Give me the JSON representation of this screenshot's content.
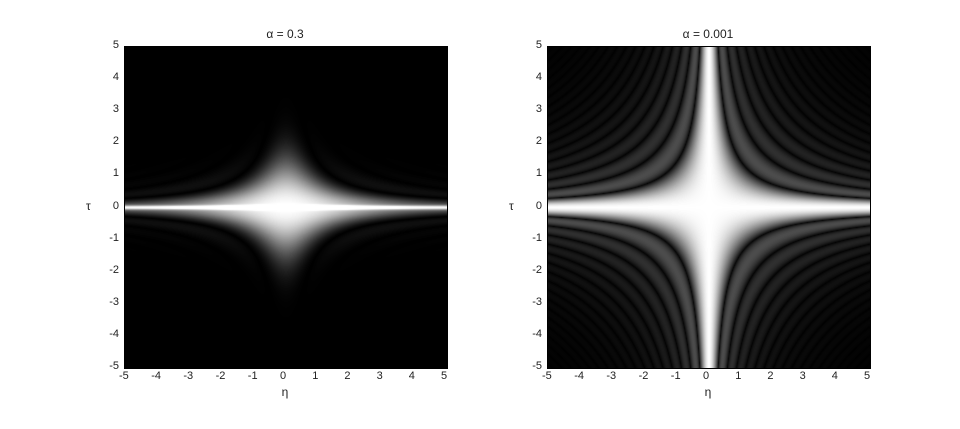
{
  "chart_data": [
    {
      "type": "heatmap",
      "title": "α = 0.3",
      "xlabel": "η",
      "ylabel": "τ",
      "xlim": [
        -5,
        5
      ],
      "ylim": [
        -5,
        5
      ],
      "xticks": [
        "-5",
        "-4",
        "-3",
        "-2",
        "-1",
        "0",
        "1",
        "2",
        "3",
        "4",
        "5"
      ],
      "yticks": [
        "5",
        "4",
        "3",
        "2",
        "1",
        "0",
        "-1",
        "-2",
        "-3",
        "-4",
        "-5"
      ],
      "colormap": "gray",
      "alpha": 0.3
    },
    {
      "type": "heatmap",
      "title": "α = 0.001",
      "xlabel": "η",
      "ylabel": "τ",
      "xlim": [
        -5,
        5
      ],
      "ylim": [
        -5,
        5
      ],
      "xticks": [
        "-5",
        "-4",
        "-3",
        "-2",
        "-1",
        "0",
        "1",
        "2",
        "3",
        "4",
        "5"
      ],
      "yticks": [
        "5",
        "4",
        "3",
        "2",
        "1",
        "0",
        "-1",
        "-2",
        "-3",
        "-4",
        "-5"
      ],
      "colormap": "gray",
      "alpha": 0.001
    }
  ]
}
